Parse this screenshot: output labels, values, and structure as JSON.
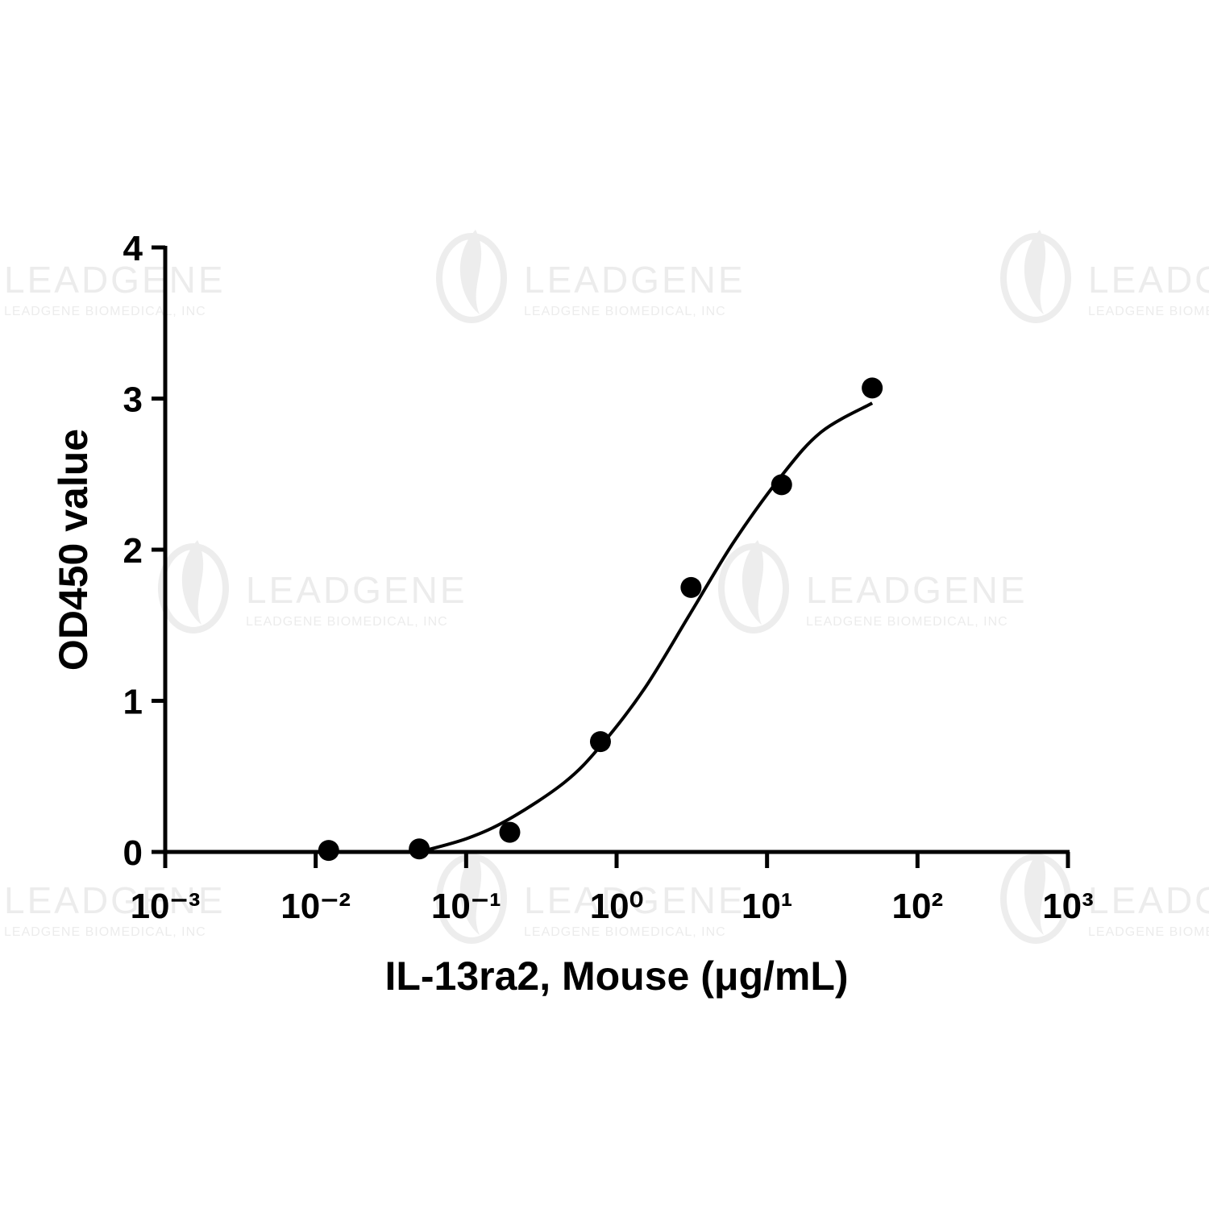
{
  "watermark": {
    "name": "LEADGENE",
    "company": "LEADGENE BIOMEDICAL, INC"
  },
  "chart_data": {
    "type": "scatter",
    "x_label": "IL-13ra2, Mouse (μg/mL)",
    "y_label": "OD450 value",
    "xscale": "log",
    "xlim": [
      0.001,
      1000
    ],
    "ylim": [
      0,
      4
    ],
    "xticks": [
      {
        "value": 0.001,
        "label": "10⁻³"
      },
      {
        "value": 0.01,
        "label": "10⁻²"
      },
      {
        "value": 0.1,
        "label": "10⁻¹"
      },
      {
        "value": 1,
        "label": "10⁰"
      },
      {
        "value": 10,
        "label": "10¹"
      },
      {
        "value": 100,
        "label": "10²"
      },
      {
        "value": 1000,
        "label": "10³"
      }
    ],
    "yticks": [
      0,
      1,
      2,
      3,
      4
    ],
    "grid": false,
    "series": [
      {
        "mode": "markers",
        "color": "#000000",
        "x": [
          0.0122,
          0.0488,
          0.195,
          0.781,
          3.125,
          12.5,
          50
        ],
        "values": [
          0.01,
          0.02,
          0.13,
          0.73,
          1.75,
          2.43,
          3.07
        ]
      },
      {
        "mode": "line",
        "color": "#000000",
        "x": [
          0.0488,
          0.102,
          0.195,
          0.45,
          0.78,
          1.53,
          3.1,
          6.0,
          12.5,
          23,
          50
        ],
        "values": [
          0.0,
          0.09,
          0.22,
          0.46,
          0.7,
          1.08,
          1.58,
          2.05,
          2.49,
          2.78,
          2.97
        ]
      }
    ]
  }
}
